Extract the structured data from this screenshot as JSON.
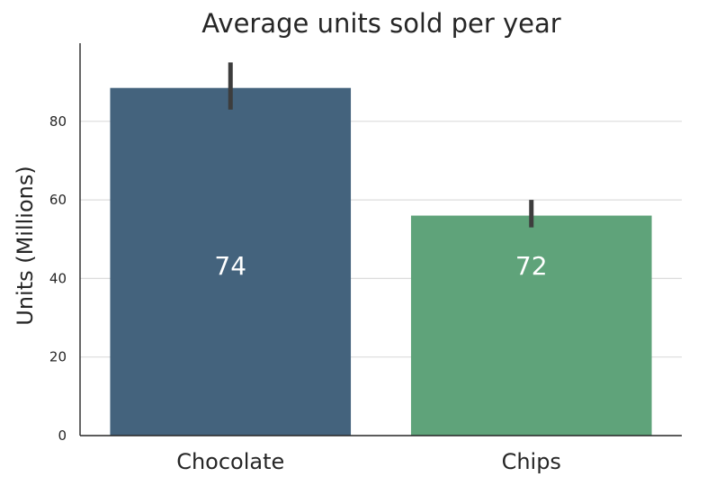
{
  "chart_data": {
    "type": "bar",
    "title": "Average units sold per year",
    "xlabel": "",
    "ylabel": "Units (Millions)",
    "categories": [
      "Chocolate",
      "Chips"
    ],
    "values": [
      88.5,
      56
    ],
    "bar_labels": [
      "74",
      "72"
    ],
    "error_bars": [
      [
        83,
        95
      ],
      [
        53,
        60
      ]
    ],
    "colors": [
      "#44637d",
      "#5fa37a"
    ],
    "error_color": "#3d3d3d",
    "ylim": [
      0,
      100
    ],
    "yticks": [
      0,
      20,
      40,
      60,
      80
    ],
    "grid": true
  }
}
